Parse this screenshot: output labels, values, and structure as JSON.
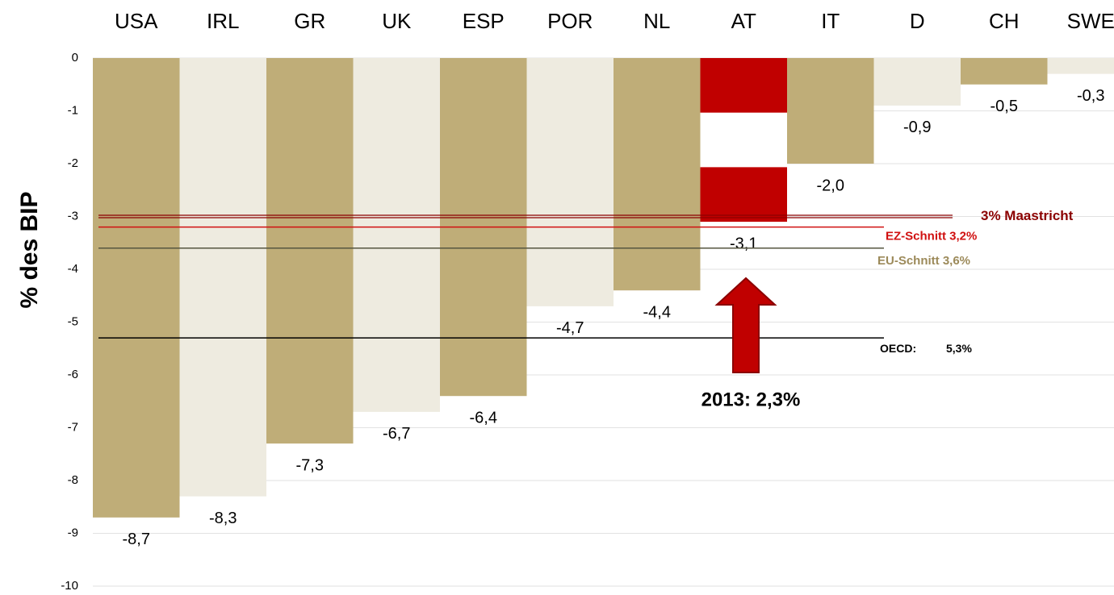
{
  "chart_data": {
    "type": "bar",
    "categories": [
      "USA",
      "IRL",
      "GR",
      "UK",
      "ESP",
      "POR",
      "NL",
      "AT",
      "IT",
      "D",
      "CH",
      "SWE"
    ],
    "values": [
      -8.7,
      -8.3,
      -7.3,
      -6.7,
      -6.4,
      -4.7,
      -4.4,
      -3.1,
      -2.0,
      -0.9,
      -0.5,
      -0.3
    ],
    "value_labels": [
      "-8,7",
      "-8,3",
      "-7,3",
      "-6,7",
      "-6,4",
      "-4,7",
      "-4,4",
      "-3,1",
      "-2,0",
      "-0,9",
      "-0,5",
      "-0,3"
    ],
    "colors": [
      "#bfad78",
      "#eeebe0",
      "#bfad78",
      "#eeebe0",
      "#bfad78",
      "#eeebe0",
      "#bfad78",
      [
        "#c00000",
        "#ffffff",
        "#c00000"
      ],
      "#bfad78",
      "#eeebe0",
      "#bfad78",
      "#eeebe0"
    ],
    "ylabel": "% des BIP",
    "ylim": [
      -10,
      0
    ],
    "yticks": [
      -10,
      -9,
      -8,
      -7,
      -6,
      -5,
      -4,
      -3,
      -2,
      -1,
      0
    ],
    "grid": true,
    "reference_lines": [
      {
        "label": "3% Maastricht",
        "value": -3,
        "color": "#8b0000"
      },
      {
        "label": "EZ-Schnitt 3,2%",
        "value": -3.2,
        "color": "#d01010"
      },
      {
        "label": "EU-Schnitt 3,6%",
        "value": -3.6,
        "color": "#9c8a5a"
      },
      {
        "label": "OECD:",
        "value": -5.3,
        "value_label": "5,3%",
        "color": "#000000"
      }
    ],
    "annotation": "2013: 2,3%"
  }
}
